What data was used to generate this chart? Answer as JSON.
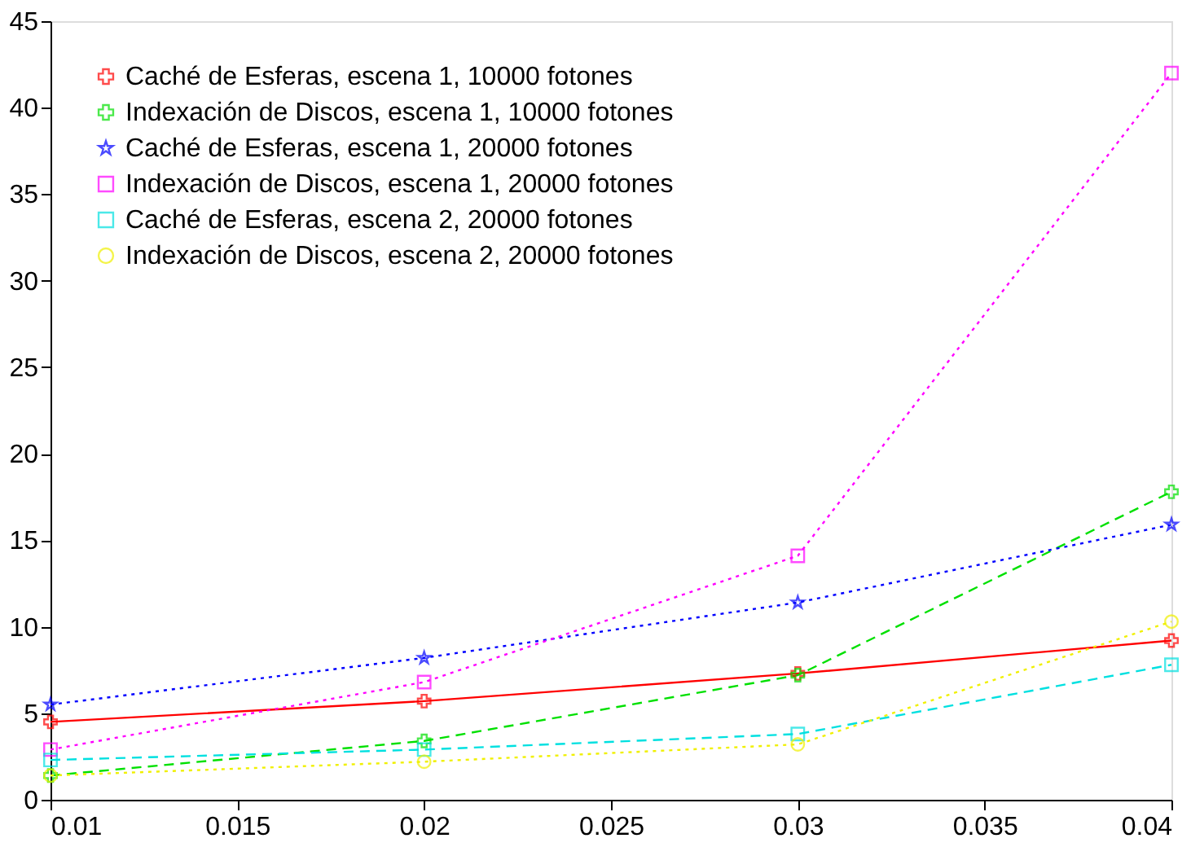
{
  "chart_data": {
    "type": "line",
    "x": [
      0.01,
      0.02,
      0.03,
      0.04
    ],
    "xlim": [
      0.01,
      0.04
    ],
    "xticks": [
      0.01,
      0.015,
      0.02,
      0.025,
      0.03,
      0.035,
      0.04
    ],
    "ylim": [
      0,
      45
    ],
    "yticks": [
      0,
      5,
      10,
      15,
      20,
      25,
      30,
      35,
      40,
      45
    ],
    "grid": false,
    "legend": "top left",
    "series": [
      {
        "name": "Caché de Esferas, escena 1, 10000 fotones",
        "color": "#ff0000",
        "marker": "cross",
        "line_style": "solid",
        "values": [
          4.5,
          5.7,
          7.3,
          9.2
        ]
      },
      {
        "name": "Indexación de Discos, escena 1, 10000 fotones",
        "color": "#00e000",
        "marker": "cross",
        "line_style": "dashed",
        "values": [
          1.4,
          3.4,
          7.2,
          17.8
        ]
      },
      {
        "name": "Caché de Esferas, escena 1, 20000 fotones",
        "color": "#0000ff",
        "marker": "star",
        "line_style": "dotted",
        "values": [
          5.5,
          8.2,
          11.4,
          15.9
        ]
      },
      {
        "name": "Indexación de Discos, escena 1, 20000 fotones",
        "color": "#ff00ff",
        "marker": "square",
        "line_style": "dotted",
        "values": [
          2.9,
          6.8,
          14.1,
          42.0
        ]
      },
      {
        "name": "Caché de Esferas, escena 2, 20000 fotones",
        "color": "#00e0e0",
        "marker": "square",
        "line_style": "dashed",
        "values": [
          2.3,
          2.9,
          3.8,
          7.8
        ]
      },
      {
        "name": "Indexación de Discos, escena 2, 20000 fotones",
        "color": "#f0f000",
        "marker": "circle",
        "line_style": "dotted",
        "values": [
          1.4,
          2.2,
          3.2,
          10.3
        ]
      }
    ]
  }
}
